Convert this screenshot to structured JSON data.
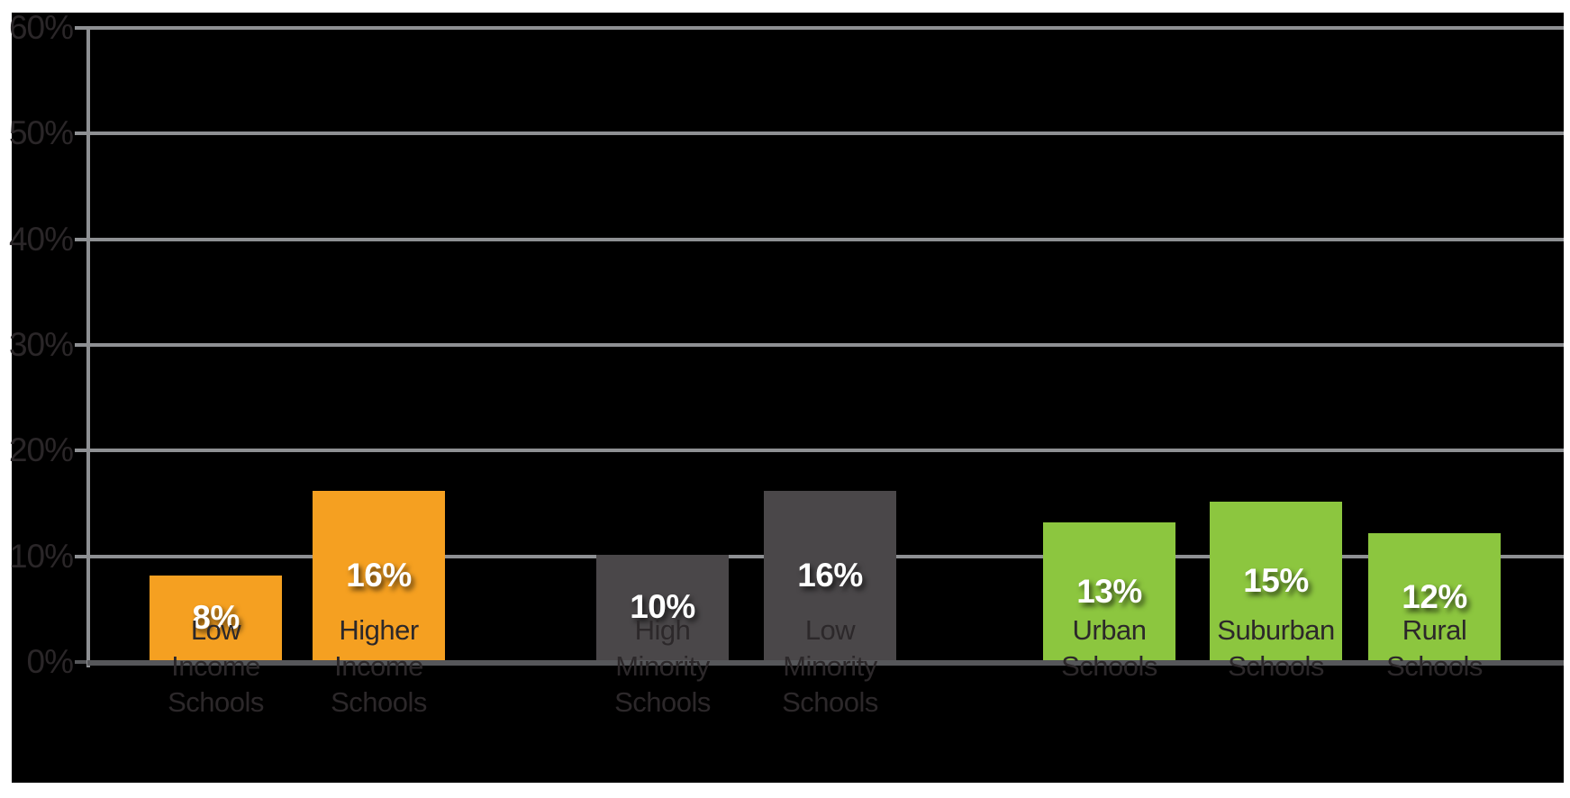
{
  "chart_data": {
    "type": "bar",
    "title": "",
    "xlabel": "",
    "ylabel": "",
    "ylim": [
      0,
      60
    ],
    "grid": true,
    "legend": false,
    "page_background": "#FFFFFF",
    "plot_background": "#000000",
    "gridline_color": "#8E9093",
    "axis_line_color": "#56575A",
    "tick_label_color": "#2A2628",
    "category_label_color": "#2C282A",
    "value_label_color": "#FFFFFF",
    "yticks": [
      {
        "value": 0,
        "label": "0%"
      },
      {
        "value": 10,
        "label": "10%"
      },
      {
        "value": 20,
        "label": "20%"
      },
      {
        "value": 30,
        "label": "30%"
      },
      {
        "value": 40,
        "label": "40%"
      },
      {
        "value": 50,
        "label": "50%"
      },
      {
        "value": 60,
        "label": "60%"
      }
    ],
    "categories": [
      "Low Income Schools",
      "Higher Income Schools",
      "High Minority Schools",
      "Low Minority Schools",
      "Urban Schools",
      "Suburban Schools",
      "Rural Schools"
    ],
    "values": [
      8,
      16,
      10,
      16,
      13,
      15,
      12
    ],
    "groups": [
      {
        "name": "income",
        "color": "#F5A021",
        "bars": [
          {
            "category": "Low Income Schools",
            "category_lines": [
              "Low",
              "Income",
              "Schools"
            ],
            "value": 8,
            "value_label": "8%"
          },
          {
            "category": "Higher Income Schools",
            "category_lines": [
              "Higher",
              "Income",
              "Schools"
            ],
            "value": 16,
            "value_label": "16%"
          }
        ]
      },
      {
        "name": "minority",
        "color": "#4A4749",
        "bars": [
          {
            "category": "High Minority Schools",
            "category_lines": [
              "High",
              "Minority",
              "Schools"
            ],
            "value": 10,
            "value_label": "10%"
          },
          {
            "category": "Low Minority Schools",
            "category_lines": [
              "Low",
              "Minority",
              "Schools"
            ],
            "value": 16,
            "value_label": "16%"
          }
        ]
      },
      {
        "name": "locale",
        "color": "#8CC63F",
        "bars": [
          {
            "category": "Urban Schools",
            "category_lines": [
              "Urban",
              "Schools"
            ],
            "value": 13,
            "value_label": "13%"
          },
          {
            "category": "Suburban Schools",
            "category_lines": [
              "Suburban",
              "Schools"
            ],
            "value": 15,
            "value_label": "15%"
          },
          {
            "category": "Rural Schools",
            "category_lines": [
              "Rural",
              "Schools"
            ],
            "value": 12,
            "value_label": "12%"
          }
        ]
      }
    ]
  }
}
